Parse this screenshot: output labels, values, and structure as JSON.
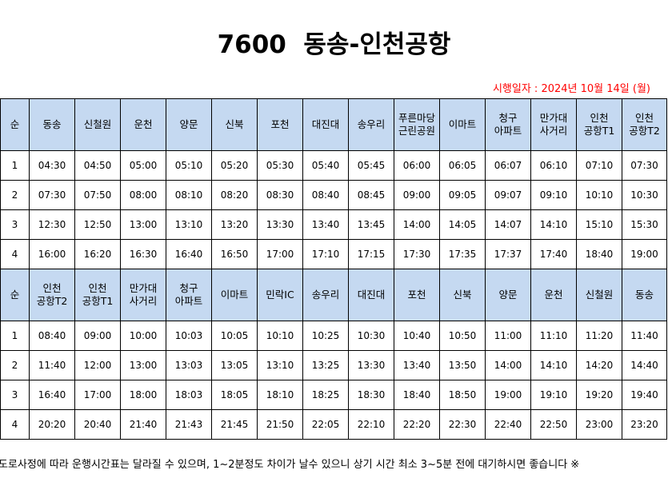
{
  "title": "7600  동송-인천공항",
  "effective_date": "시행일자 : 2024년 10월 14일 (월)",
  "outbound": {
    "headers": [
      [
        "순"
      ],
      [
        "동송"
      ],
      [
        "신철원"
      ],
      [
        "운천"
      ],
      [
        "양문"
      ],
      [
        "신북"
      ],
      [
        "포천"
      ],
      [
        "대진대"
      ],
      [
        "송우리"
      ],
      [
        "푸른마당",
        "근린공원"
      ],
      [
        "이마트"
      ],
      [
        "청구",
        "아파트"
      ],
      [
        "만가대",
        "사거리"
      ],
      [
        "인천",
        "공항T1"
      ],
      [
        "인천",
        "공항T2"
      ]
    ],
    "rows": [
      [
        "1",
        "04:30",
        "04:50",
        "05:00",
        "05:10",
        "05:20",
        "05:30",
        "05:40",
        "05:45",
        "06:00",
        "06:05",
        "06:07",
        "06:10",
        "07:10",
        "07:30"
      ],
      [
        "2",
        "07:30",
        "07:50",
        "08:00",
        "08:10",
        "08:20",
        "08:30",
        "08:40",
        "08:45",
        "09:00",
        "09:05",
        "09:07",
        "09:10",
        "10:10",
        "10:30"
      ],
      [
        "3",
        "12:30",
        "12:50",
        "13:00",
        "13:10",
        "13:20",
        "13:30",
        "13:40",
        "13:45",
        "14:00",
        "14:05",
        "14:07",
        "14:10",
        "15:10",
        "15:30"
      ],
      [
        "4",
        "16:00",
        "16:20",
        "16:30",
        "16:40",
        "16:50",
        "17:00",
        "17:10",
        "17:15",
        "17:30",
        "17:35",
        "17:37",
        "17:40",
        "18:40",
        "19:00"
      ]
    ]
  },
  "inbound": {
    "headers": [
      [
        "순"
      ],
      [
        "인천",
        "공항T2"
      ],
      [
        "인천",
        "공항T1"
      ],
      [
        "만가대",
        "사거리"
      ],
      [
        "청구",
        "아파트"
      ],
      [
        "이마트"
      ],
      [
        "민락IC"
      ],
      [
        "송우리"
      ],
      [
        "대진대"
      ],
      [
        "포천"
      ],
      [
        "신북"
      ],
      [
        "양문"
      ],
      [
        "운천"
      ],
      [
        "신철원"
      ],
      [
        "동송"
      ]
    ],
    "rows": [
      [
        "1",
        "08:40",
        "09:00",
        "10:00",
        "10:03",
        "10:05",
        "10:10",
        "10:25",
        "10:30",
        "10:40",
        "10:50",
        "11:00",
        "11:10",
        "11:20",
        "11:40"
      ],
      [
        "2",
        "11:40",
        "12:00",
        "13:00",
        "13:03",
        "13:05",
        "13:10",
        "13:25",
        "13:30",
        "13:40",
        "13:50",
        "14:00",
        "14:10",
        "14:20",
        "14:40"
      ],
      [
        "3",
        "16:40",
        "17:00",
        "18:00",
        "18:03",
        "18:05",
        "18:10",
        "18:25",
        "18:30",
        "18:40",
        "18:50",
        "19:00",
        "19:10",
        "19:20",
        "19:40"
      ],
      [
        "4",
        "20:20",
        "20:40",
        "21:40",
        "21:43",
        "21:45",
        "21:50",
        "22:05",
        "22:10",
        "22:20",
        "22:30",
        "22:40",
        "22:50",
        "23:00",
        "23:20"
      ]
    ]
  },
  "notice": "도로사정에 따라 운행시간표는 달라질 수 있으며, 1~2분정도 차이가 날수 있으니 상기 시간 최소 3~5분 전에 대기하시면 좋습니다 ※"
}
